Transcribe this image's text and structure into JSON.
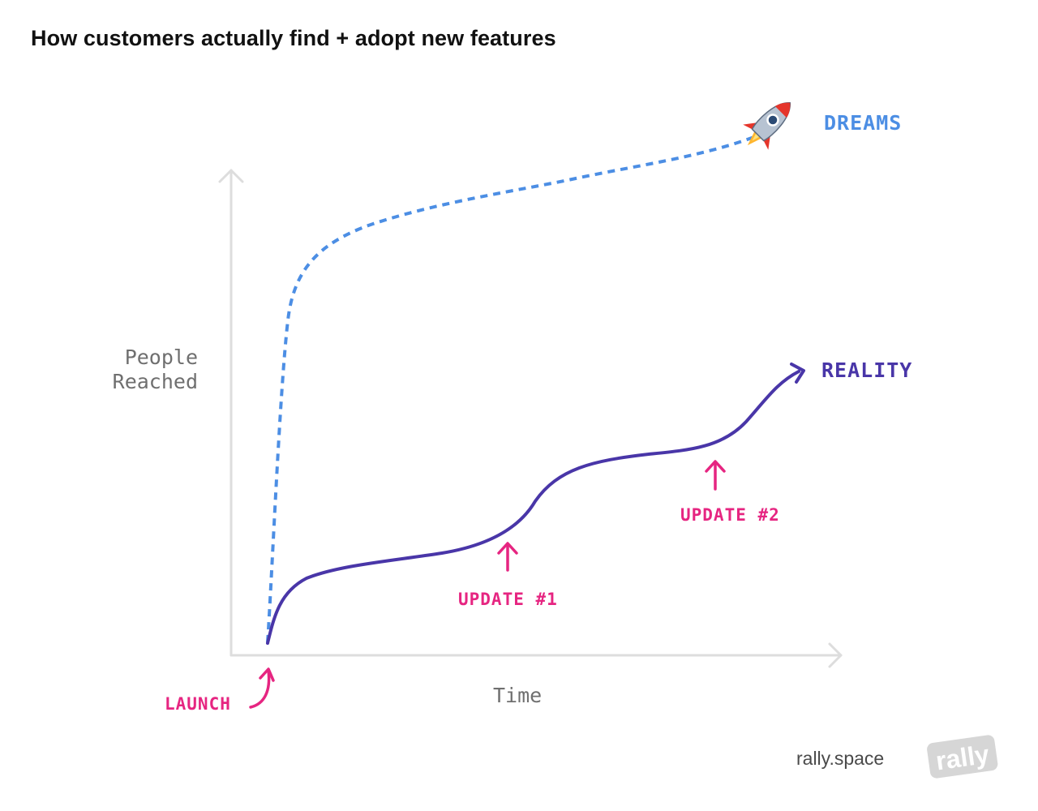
{
  "title": "How customers actually find + adopt new features",
  "axes": {
    "y_label_line1": "People",
    "y_label_line2": "Reached",
    "x_label": "Time"
  },
  "series": {
    "dreams": {
      "label": "DREAMS",
      "color": "#4c8ee4",
      "style": "dashed",
      "icon": "rocket-icon"
    },
    "reality": {
      "label": "REALITY",
      "color": "#4936a8",
      "style": "solid"
    }
  },
  "annotations": {
    "launch": "LAUNCH",
    "update1": "UPDATE #1",
    "update2": "UPDATE #2",
    "color": "#e62581"
  },
  "footer": {
    "site": "rally.space",
    "logo_text": "rally",
    "logo_icon": "rally-logo-icon"
  },
  "colors": {
    "axis": "#dddddd",
    "text_muted": "#6f6f6f"
  }
}
